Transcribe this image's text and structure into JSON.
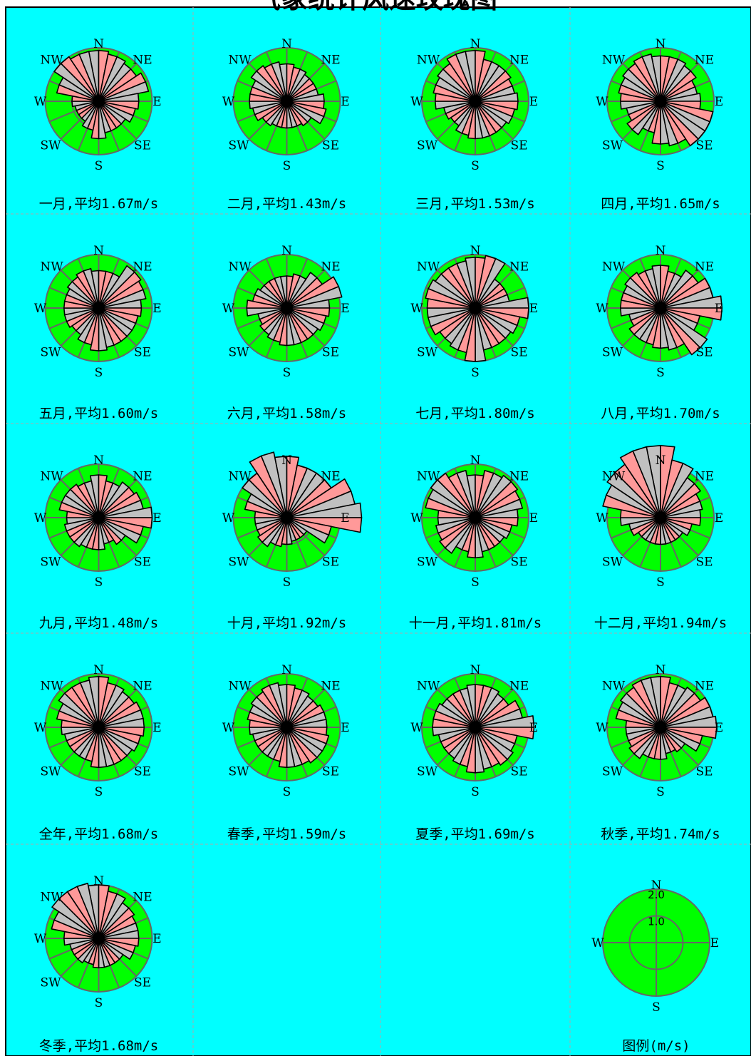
{
  "title": "气象统计风速玫瑰图",
  "colors": {
    "background": "#00ffff",
    "ring": "#00ff00",
    "petal_a": "#ff9999",
    "petal_b": "#c0c0c0",
    "axis": "#666666",
    "divider": "#aaaaaa"
  },
  "directions": [
    "N",
    "NE",
    "E",
    "SE",
    "S",
    "SW",
    "W",
    "NW"
  ],
  "legend": {
    "label": "图例(m/s)",
    "tick_labels": [
      "2.0",
      "1.0"
    ],
    "ticks": [
      2.0,
      1.0
    ],
    "max": 2.0
  },
  "chart_data": {
    "type": "wind-rose",
    "unit": "m/s",
    "scale_max": 2.0,
    "direction_sectors": [
      "N",
      "NNE",
      "NE",
      "ENE",
      "E",
      "ESE",
      "SE",
      "SSE",
      "S",
      "SSW",
      "SW",
      "WSW",
      "W",
      "WNW",
      "NW",
      "NNW"
    ],
    "roses": [
      {
        "label": "一月,平均1.67m/s",
        "values": [
          1.9,
          1.8,
          1.7,
          1.9,
          1.5,
          1.4,
          1.2,
          1.2,
          1.4,
          1.1,
          0.9,
          0.9,
          1.0,
          1.6,
          2.0,
          1.9
        ]
      },
      {
        "label": "二月,平均1.43m/s",
        "values": [
          1.4,
          1.3,
          1.2,
          1.2,
          1.4,
          1.5,
          1.1,
          1.0,
          1.0,
          1.0,
          1.1,
          1.3,
          1.4,
          1.4,
          1.6,
          1.5
        ]
      },
      {
        "label": "三月,平均1.53m/s",
        "values": [
          1.9,
          1.6,
          1.6,
          1.5,
          1.6,
          1.5,
          1.4,
          1.4,
          1.4,
          1.3,
          1.1,
          1.2,
          1.5,
          1.6,
          1.7,
          1.9
        ]
      },
      {
        "label": "四月,平均1.65m/s",
        "values": [
          1.7,
          1.7,
          1.6,
          1.4,
          1.5,
          2.0,
          2.0,
          1.7,
          1.6,
          1.2,
          1.5,
          1.3,
          1.5,
          1.6,
          1.7,
          1.8
        ]
      },
      {
        "label": "五月,平均1.60m/s",
        "values": [
          1.4,
          1.4,
          1.9,
          1.8,
          1.6,
          1.5,
          1.5,
          1.5,
          1.6,
          1.4,
          1.2,
          1.3,
          1.3,
          1.3,
          1.4,
          1.5
        ]
      },
      {
        "label": "六月,平均1.58m/s",
        "values": [
          1.2,
          1.3,
          1.6,
          2.1,
          1.6,
          1.5,
          1.4,
          1.4,
          1.4,
          1.3,
          1.2,
          1.1,
          1.5,
          1.3,
          1.2,
          1.2
        ]
      },
      {
        "label": "七月,平均1.80m/s",
        "values": [
          1.9,
          2.0,
          1.3,
          1.3,
          2.0,
          1.7,
          1.6,
          1.6,
          2.0,
          1.7,
          1.6,
          1.8,
          1.8,
          1.9,
          1.8,
          1.8
        ]
      },
      {
        "label": "八月,平均1.70m/s",
        "values": [
          1.6,
          1.4,
          1.7,
          2.0,
          2.3,
          1.5,
          2.1,
          1.6,
          1.5,
          1.4,
          1.4,
          1.2,
          1.5,
          1.5,
          1.6,
          1.5
        ]
      },
      {
        "label": "九月,平均1.48m/s",
        "values": [
          1.6,
          1.4,
          1.6,
          1.7,
          2.0,
          1.7,
          1.2,
          1.0,
          1.2,
          1.2,
          1.3,
          1.3,
          1.2,
          1.5,
          1.5,
          1.4
        ]
      },
      {
        "label": "十月,平均1.92m/s",
        "values": [
          2.3,
          2.0,
          2.0,
          2.6,
          2.8,
          1.7,
          0.9,
          0.9,
          1.0,
          1.1,
          1.3,
          1.2,
          1.2,
          1.6,
          2.0,
          2.5
        ]
      },
      {
        "label": "十一月,平均1.81m/s",
        "values": [
          1.6,
          1.8,
          1.9,
          1.8,
          1.6,
          1.4,
          1.3,
          1.3,
          1.5,
          1.3,
          1.6,
          1.5,
          1.4,
          1.9,
          2.0,
          1.8
        ]
      },
      {
        "label": "十二月,平均1.94m/s",
        "values": [
          2.7,
          2.2,
          1.8,
          1.6,
          1.5,
          1.2,
          1.0,
          1.0,
          1.0,
          1.0,
          1.0,
          1.2,
          1.5,
          2.2,
          2.4,
          2.7
        ]
      },
      {
        "label": "全年,平均1.68m/s",
        "values": [
          1.9,
          1.7,
          1.6,
          1.7,
          1.7,
          1.6,
          1.5,
          1.5,
          1.5,
          1.3,
          1.3,
          1.3,
          1.4,
          1.6,
          1.8,
          1.8
        ]
      },
      {
        "label": "春季,平均1.59m/s",
        "values": [
          1.6,
          1.5,
          1.4,
          1.5,
          1.5,
          1.6,
          1.6,
          1.5,
          1.5,
          1.3,
          1.3,
          1.3,
          1.4,
          1.5,
          1.6,
          1.7
        ]
      },
      {
        "label": "夏季,平均1.69m/s",
        "values": [
          1.6,
          1.6,
          1.5,
          1.8,
          2.2,
          1.6,
          1.7,
          1.6,
          1.7,
          1.5,
          1.4,
          1.4,
          1.6,
          1.6,
          1.5,
          1.5
        ]
      },
      {
        "label": "秋季,平均1.74m/s",
        "values": [
          1.9,
          1.7,
          1.8,
          2.0,
          2.1,
          1.6,
          1.1,
          1.0,
          1.2,
          1.2,
          1.4,
          1.3,
          1.3,
          1.7,
          1.8,
          1.9
        ]
      },
      {
        "label": "冬季,平均1.68m/s",
        "values": [
          2.0,
          1.8,
          1.6,
          1.5,
          1.5,
          1.4,
          1.1,
          1.1,
          1.1,
          1.0,
          1.1,
          1.1,
          1.3,
          1.8,
          2.1,
          2.1
        ]
      }
    ]
  }
}
